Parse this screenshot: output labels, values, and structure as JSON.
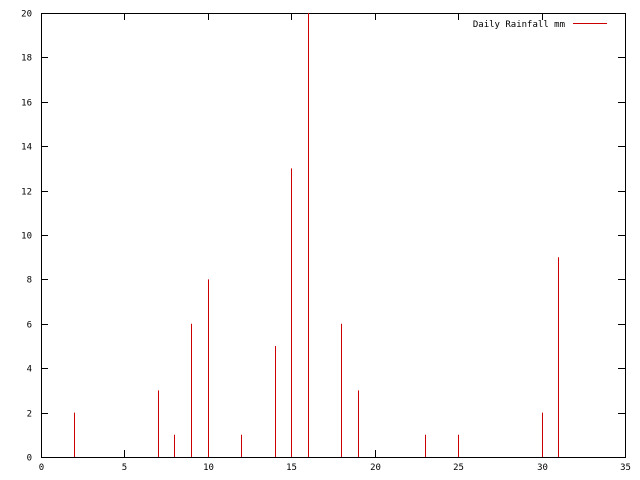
{
  "chart_data": {
    "type": "bar",
    "style": "impulses",
    "title": "",
    "xlabel": "",
    "ylabel": "",
    "xlim": [
      0,
      35
    ],
    "ylim": [
      0,
      20
    ],
    "xticks": [
      0,
      5,
      10,
      15,
      20,
      25,
      30,
      35
    ],
    "yticks": [
      0,
      2,
      4,
      6,
      8,
      10,
      12,
      14,
      16,
      18,
      20
    ],
    "grid": false,
    "legend_position": "top-right",
    "series": [
      {
        "name": "Daily Rainfall mm",
        "color": "#cc0000",
        "x": [
          2,
          7,
          8,
          9,
          10,
          12,
          14,
          15,
          16,
          18,
          19,
          23,
          25,
          30,
          31
        ],
        "y": [
          2,
          3,
          1,
          6,
          8,
          1,
          5,
          13,
          20,
          6,
          3,
          1,
          1,
          2,
          9
        ]
      }
    ]
  }
}
